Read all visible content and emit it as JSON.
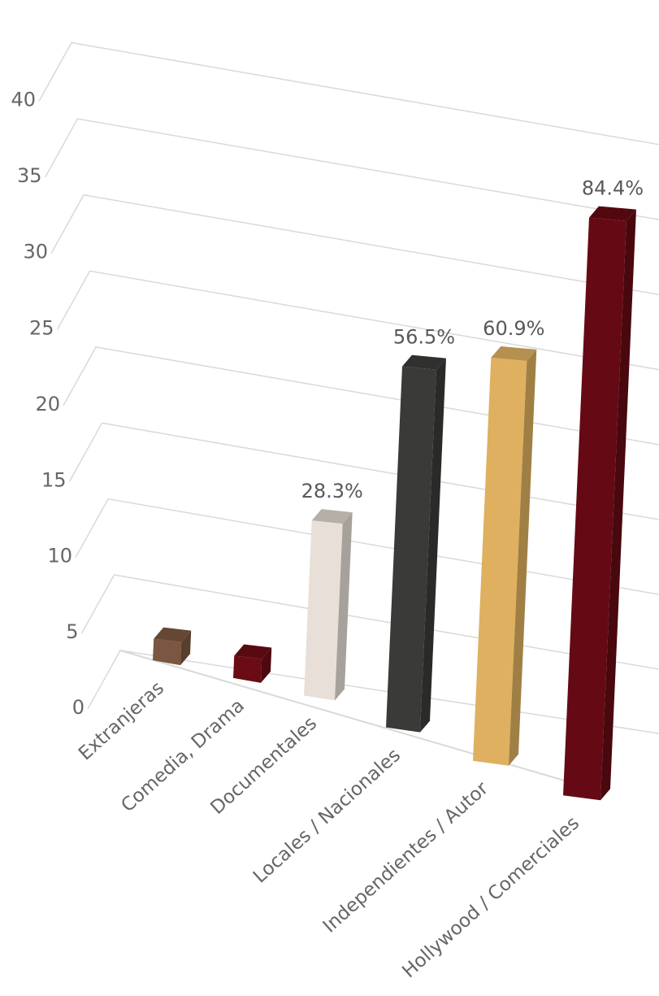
{
  "chart_data": {
    "type": "bar",
    "title": "",
    "xlabel": "",
    "ylabel": "",
    "ylim": [
      0,
      40
    ],
    "y_ticks": [
      "0",
      "5",
      "10",
      "15",
      "20",
      "25",
      "30",
      "35",
      "40"
    ],
    "categories": [
      "Extranjeras",
      "Comedia, Drama",
      "Documentales",
      "Locales / Nacionales",
      "Independientes / Autor",
      "Hollywood / Comerciales"
    ],
    "values": [
      1.5,
      1.5,
      11.5,
      23,
      24.9,
      34.6
    ],
    "data_labels": [
      "",
      "",
      "28.3%",
      "56.5%",
      "60.9%",
      "84.4%"
    ],
    "colors": [
      "#7b5640",
      "#6b0c15",
      "#e8e0d8",
      "#3a3a38",
      "#deb060",
      "#650a14"
    ],
    "grid": true,
    "legend": "none",
    "style": "3d-perspective"
  }
}
